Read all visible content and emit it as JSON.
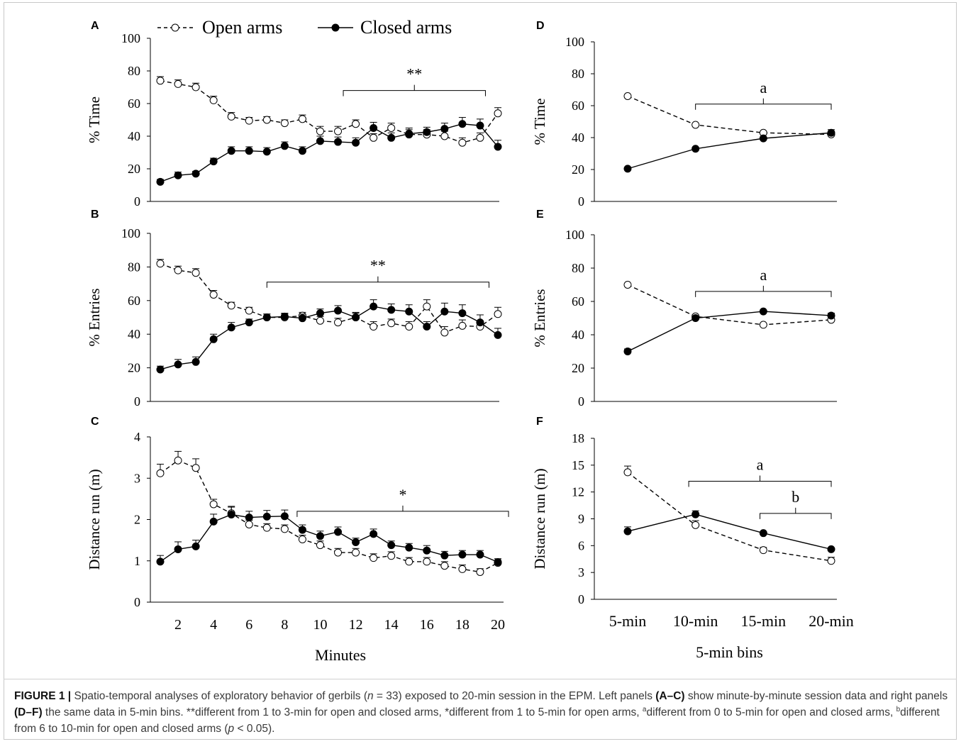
{
  "legend": {
    "open_label": "Open arms",
    "closed_label": "Closed arms"
  },
  "caption": {
    "figure_label": "FIGURE 1 |",
    "text_1": " Spatio-temporal analyses of exploratory behavior of gerbils (",
    "n_italic": "n",
    "text_2": " = 33) exposed to 20-min session in the EPM. Left panels ",
    "bold_1": "(A–C)",
    "text_3": " show minute-by-minute session data and right panels ",
    "bold_2": "(D–F)",
    "text_4": " the same data in 5-min bins. **different from 1 to 3-min for open and closed arms, *different from 1 to 5-min for open arms, ",
    "sup_a": "a",
    "text_5": "different from 0 to 5-min for open and closed arms, ",
    "sup_b": "b",
    "text_6": "different from 6 to 10-min for open and closed arms (",
    "p_italic": "p",
    "text_7": " < 0.05)."
  },
  "colors": {
    "line": "#000000",
    "open_fill": "#ffffff",
    "closed_fill": "#000000"
  },
  "chart_data": [
    {
      "panel": "A",
      "type": "line",
      "ylabel": "% Time",
      "xlabel": "",
      "ylim": [
        0,
        100
      ],
      "yticks": [
        0,
        20,
        40,
        60,
        80,
        100
      ],
      "x": [
        1,
        2,
        3,
        4,
        5,
        6,
        7,
        8,
        9,
        10,
        11,
        12,
        13,
        14,
        15,
        16,
        17,
        18,
        19,
        20
      ],
      "xticks": [
        2,
        4,
        6,
        8,
        10,
        12,
        14,
        16,
        18,
        20
      ],
      "show_xtick_labels": false,
      "series": [
        {
          "name": "Open arms",
          "style": "dashed-open",
          "values": [
            74,
            72,
            70,
            62,
            52,
            49.5,
            50,
            48,
            50.5,
            43,
            43,
            47.5,
            39,
            45,
            41,
            41,
            40,
            36,
            39,
            54
          ],
          "err": [
            2.5,
            2.5,
            2.5,
            2.5,
            2.5,
            2,
            2,
            2,
            2.5,
            3,
            3,
            2.5,
            2.5,
            3,
            3,
            3,
            3,
            3,
            3,
            3.5
          ]
        },
        {
          "name": "Closed arms",
          "style": "solid-filled",
          "values": [
            12,
            16,
            17,
            24.5,
            31,
            31,
            30.5,
            34,
            31,
            37,
            36.5,
            36,
            45,
            39,
            41.5,
            42.5,
            44.5,
            47.5,
            46.5,
            33.5
          ],
          "err": [
            1.5,
            2,
            1.5,
            2,
            2.5,
            2.5,
            2.5,
            2.5,
            2.5,
            3,
            3,
            3,
            3.5,
            3,
            3.5,
            3,
            3.5,
            4,
            4,
            4
          ]
        }
      ],
      "annotation": {
        "text": "**",
        "from_x": 11.3,
        "to_x": 19.3,
        "y": 68
      }
    },
    {
      "panel": "B",
      "type": "line",
      "ylabel": "% Entries",
      "xlabel": "",
      "ylim": [
        0,
        100
      ],
      "yticks": [
        0,
        20,
        40,
        60,
        80,
        100
      ],
      "x": [
        1,
        2,
        3,
        4,
        5,
        6,
        7,
        8,
        9,
        10,
        11,
        12,
        13,
        14,
        15,
        16,
        17,
        18,
        19,
        20
      ],
      "xticks": [
        2,
        4,
        6,
        8,
        10,
        12,
        14,
        16,
        18,
        20
      ],
      "show_xtick_labels": false,
      "series": [
        {
          "name": "Open arms",
          "style": "dashed-open",
          "values": [
            82,
            78,
            76.5,
            63.5,
            57,
            54,
            50,
            50,
            51,
            48,
            47,
            50,
            44.5,
            46.5,
            44.5,
            56.5,
            41,
            45,
            44.5,
            52
          ],
          "err": [
            2.5,
            2.5,
            2.5,
            2.5,
            2,
            2,
            2,
            2,
            2,
            2.5,
            2.5,
            2.5,
            3,
            2.5,
            3,
            4,
            3.5,
            3.5,
            3.5,
            4
          ]
        },
        {
          "name": "Closed arms",
          "style": "solid-filled",
          "values": [
            19,
            22,
            23.5,
            37,
            44,
            47,
            50,
            50.5,
            49.5,
            52.5,
            54,
            50,
            56.5,
            54.5,
            53.5,
            44.5,
            53.5,
            52.5,
            47,
            39.5
          ],
          "err": [
            2,
            3,
            3,
            3,
            3,
            2,
            2,
            2,
            2.5,
            2.5,
            3,
            3,
            4,
            3.5,
            4,
            3,
            5,
            5,
            4.5,
            4
          ]
        }
      ],
      "annotation": {
        "text": "**",
        "from_x": 7,
        "to_x": 19.5,
        "y": 71
      }
    },
    {
      "panel": "C",
      "type": "line",
      "ylabel": "Distance run (m)",
      "xlabel": "Minutes",
      "ylim": [
        0,
        4
      ],
      "yticks": [
        0,
        1,
        2,
        3,
        4
      ],
      "x": [
        1,
        2,
        3,
        4,
        5,
        6,
        7,
        8,
        9,
        10,
        11,
        12,
        13,
        14,
        15,
        16,
        17,
        18,
        19,
        20
      ],
      "xticks": [
        2,
        4,
        6,
        8,
        10,
        12,
        14,
        16,
        18,
        20
      ],
      "show_xtick_labels": true,
      "series": [
        {
          "name": "Open arms",
          "style": "dashed-open",
          "values": [
            3.12,
            3.43,
            3.25,
            2.37,
            2.15,
            1.88,
            1.8,
            1.77,
            1.52,
            1.38,
            1.2,
            1.2,
            1.07,
            1.12,
            0.98,
            0.98,
            0.88,
            0.8,
            0.73,
            0.95
          ],
          "err": [
            0.22,
            0.22,
            0.22,
            0.12,
            0.15,
            0.1,
            0.1,
            0.1,
            0.1,
            0.1,
            0.1,
            0.1,
            0.1,
            0.1,
            0.1,
            0.1,
            0.1,
            0.1,
            0.08,
            0.1
          ]
        },
        {
          "name": "Closed arms",
          "style": "solid-filled",
          "values": [
            0.98,
            1.28,
            1.35,
            1.95,
            2.12,
            2.05,
            2.07,
            2.08,
            1.75,
            1.6,
            1.7,
            1.45,
            1.65,
            1.38,
            1.32,
            1.25,
            1.13,
            1.15,
            1.15,
            0.97
          ],
          "err": [
            0.15,
            0.18,
            0.15,
            0.18,
            0.2,
            0.15,
            0.15,
            0.15,
            0.12,
            0.12,
            0.12,
            0.1,
            0.12,
            0.1,
            0.1,
            0.12,
            0.1,
            0.1,
            0.1,
            0.08
          ]
        }
      ],
      "annotation": {
        "text": "*",
        "from_x": 8.7,
        "to_x": 20.6,
        "y": 2.2
      }
    },
    {
      "panel": "D",
      "type": "line",
      "ylabel": "% Time",
      "xlabel": "",
      "ylim": [
        0,
        100
      ],
      "yticks": [
        0,
        20,
        40,
        60,
        80,
        100
      ],
      "categories": [
        "5-min",
        "10-min",
        "15-min",
        "20-min"
      ],
      "show_xtick_labels": false,
      "series": [
        {
          "name": "Open arms",
          "style": "dashed-open",
          "values": [
            66,
            48,
            43,
            42
          ],
          "err": [
            0,
            0,
            0,
            0
          ]
        },
        {
          "name": "Closed arms",
          "style": "solid-filled",
          "values": [
            20.5,
            33,
            39.5,
            43
          ],
          "err": [
            0,
            0,
            0,
            2
          ]
        }
      ],
      "annotation": {
        "text": "a",
        "from_x": 1,
        "to_x": 3,
        "y": 61
      }
    },
    {
      "panel": "E",
      "type": "line",
      "ylabel": "% Entries",
      "xlabel": "",
      "ylim": [
        0,
        100
      ],
      "yticks": [
        0,
        20,
        40,
        60,
        80,
        100
      ],
      "categories": [
        "5-min",
        "10-min",
        "15-min",
        "20-min"
      ],
      "show_xtick_labels": false,
      "series": [
        {
          "name": "Open arms",
          "style": "dashed-open",
          "values": [
            70,
            51,
            46,
            49
          ],
          "err": [
            0,
            0,
            0,
            0
          ]
        },
        {
          "name": "Closed arms",
          "style": "solid-filled",
          "values": [
            30,
            50,
            54,
            51.5
          ],
          "err": [
            1.5,
            0,
            0,
            1.5
          ]
        }
      ],
      "annotation": {
        "text": "a",
        "from_x": 1,
        "to_x": 3,
        "y": 66
      }
    },
    {
      "panel": "F",
      "type": "line",
      "ylabel": "Distance run (m)",
      "xlabel": "5-min bins",
      "ylim": [
        0,
        18
      ],
      "yticks": [
        0,
        3,
        6,
        9,
        12,
        15,
        18
      ],
      "categories": [
        "5-min",
        "10-min",
        "15-min",
        "20-min"
      ],
      "show_xtick_labels": true,
      "series": [
        {
          "name": "Open arms",
          "style": "dashed-open",
          "values": [
            14.2,
            8.3,
            5.5,
            4.3
          ],
          "err": [
            0.7,
            0.5,
            0.3,
            0.4
          ]
        },
        {
          "name": "Closed arms",
          "style": "solid-filled",
          "values": [
            7.6,
            9.5,
            7.4,
            5.6
          ],
          "err": [
            0.5,
            0.4,
            0,
            0
          ]
        }
      ],
      "annotation": [
        {
          "text": "a",
          "from_x": 0.9,
          "to_x": 3,
          "y": 13.2
        },
        {
          "text": "b",
          "from_x": 1.95,
          "to_x": 3,
          "y": 9.6
        }
      ]
    }
  ]
}
